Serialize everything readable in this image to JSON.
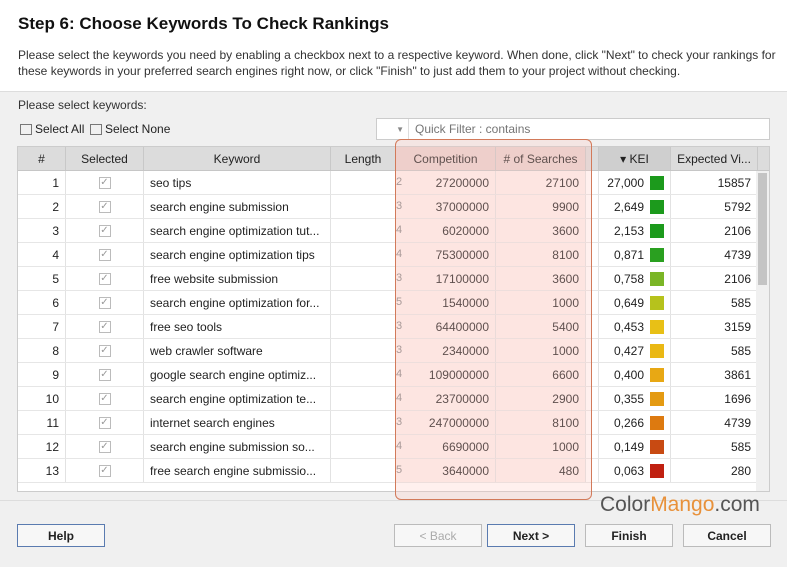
{
  "title": "Step 6: Choose Keywords To Check Rankings",
  "description": "Please select the keywords you need by enabling a checkbox next to a respective keyword. When done, click \"Next\" to check your rankings for these keywords in your preferred search engines right now, or click \"Finish\" to just add them to your project without checking.",
  "select_label": "Please select keywords:",
  "select_all": "Select All",
  "select_none": "Select None",
  "filter_placeholder": "Quick Filter : contains",
  "columns": [
    "#",
    "Selected",
    "Keyword",
    "Length",
    "Competition",
    "# of Searches",
    "▾ KEI",
    "Expected Vi..."
  ],
  "rows": [
    {
      "n": "1",
      "kw": "seo tips",
      "len": "2",
      "comp": "27200000",
      "srch": "27100",
      "kei": "27,000",
      "color": "#1c9a1c",
      "exp": "15857"
    },
    {
      "n": "2",
      "kw": "search engine submission",
      "len": "3",
      "comp": "37000000",
      "srch": "9900",
      "kei": "2,649",
      "color": "#1c9a1c",
      "exp": "5792"
    },
    {
      "n": "3",
      "kw": "search engine optimization tut...",
      "len": "4",
      "comp": "6020000",
      "srch": "3600",
      "kei": "2,153",
      "color": "#1c9a1c",
      "exp": "2106"
    },
    {
      "n": "4",
      "kw": "search engine optimization tips",
      "len": "4",
      "comp": "75300000",
      "srch": "8100",
      "kei": "0,871",
      "color": "#2aa020",
      "exp": "4739"
    },
    {
      "n": "5",
      "kw": "free website submission",
      "len": "3",
      "comp": "17100000",
      "srch": "3600",
      "kei": "0,758",
      "color": "#7ab526",
      "exp": "2106"
    },
    {
      "n": "6",
      "kw": "search engine optimization for...",
      "len": "5",
      "comp": "1540000",
      "srch": "1000",
      "kei": "0,649",
      "color": "#b6c21c",
      "exp": "585"
    },
    {
      "n": "7",
      "kw": "free seo tools",
      "len": "3",
      "comp": "64400000",
      "srch": "5400",
      "kei": "0,453",
      "color": "#e8c016",
      "exp": "3159"
    },
    {
      "n": "8",
      "kw": "web crawler software",
      "len": "3",
      "comp": "2340000",
      "srch": "1000",
      "kei": "0,427",
      "color": "#eab814",
      "exp": "585"
    },
    {
      "n": "9",
      "kw": "google search engine optimiz...",
      "len": "4",
      "comp": "109000000",
      "srch": "6600",
      "kei": "0,400",
      "color": "#e8a814",
      "exp": "3861"
    },
    {
      "n": "10",
      "kw": "search engine optimization te...",
      "len": "4",
      "comp": "23700000",
      "srch": "2900",
      "kei": "0,355",
      "color": "#e49a12",
      "exp": "1696"
    },
    {
      "n": "11",
      "kw": "internet search engines",
      "len": "3",
      "comp": "247000000",
      "srch": "8100",
      "kei": "0,266",
      "color": "#dd7a10",
      "exp": "4739"
    },
    {
      "n": "12",
      "kw": "search engine submission so...",
      "len": "4",
      "comp": "6690000",
      "srch": "1000",
      "kei": "0,149",
      "color": "#c84a12",
      "exp": "585"
    },
    {
      "n": "13",
      "kw": "free search engine submissio...",
      "len": "5",
      "comp": "3640000",
      "srch": "480",
      "kei": "0,063",
      "color": "#c02010",
      "exp": "280"
    }
  ],
  "buttons": {
    "help": "Help",
    "back": "< Back",
    "next": "Next >",
    "finish": "Finish",
    "cancel": "Cancel"
  },
  "watermark": "ColorMango.com"
}
